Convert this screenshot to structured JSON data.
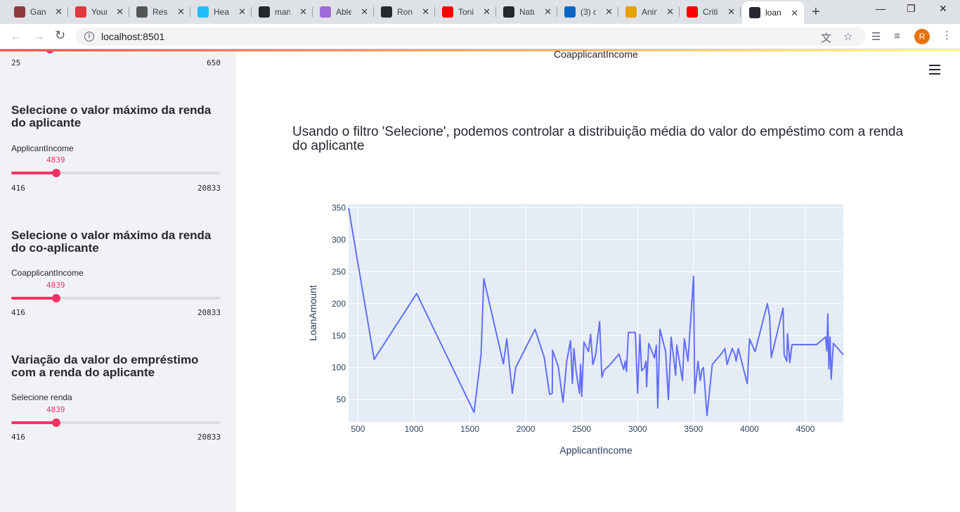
{
  "browser": {
    "tabs": [
      {
        "title": "Gant",
        "icon": "car-icon",
        "color": "#8d3b3b"
      },
      {
        "title": "Your",
        "icon": "crown-icon",
        "color": "#e0383e"
      },
      {
        "title": "Resi",
        "icon": "phone-icon",
        "color": "#555555"
      },
      {
        "title": "Hea",
        "icon": "kaggle-icon",
        "color": "#20beff"
      },
      {
        "title": "man",
        "icon": "github-icon",
        "color": "#24292e"
      },
      {
        "title": "Able",
        "icon": "able-icon",
        "color": "#9e6bd8"
      },
      {
        "title": "Ron",
        "icon": "github-icon",
        "color": "#24292e"
      },
      {
        "title": "Toni",
        "icon": "youtube-icon",
        "color": "#ff0000"
      },
      {
        "title": "Natu",
        "icon": "github-icon",
        "color": "#24292e"
      },
      {
        "title": "(3) c",
        "icon": "linkedin-icon",
        "color": "#0a66c2"
      },
      {
        "title": "Anin",
        "icon": "anime-icon",
        "color": "#e5a100"
      },
      {
        "title": "Criti",
        "icon": "youtube-icon",
        "color": "#ff0000"
      },
      {
        "title": "loan",
        "icon": "streamlit-icon",
        "color": "#262730"
      }
    ],
    "url": "localhost:8501",
    "avatar_letter": "R"
  },
  "sidebar": {
    "top_slider": {
      "min": "25",
      "max": "650",
      "fraction": 0.19
    },
    "sections": [
      {
        "heading": "Selecione o valor máximo da renda do aplicante",
        "label": "ApplicantIncome",
        "value": "4839",
        "min": "416",
        "max": "20833",
        "fraction": 0.215
      },
      {
        "heading": "Selecione o valor máximo da renda do co-aplicante",
        "label": "CoapplicantIncome",
        "value": "4839",
        "min": "416",
        "max": "20833",
        "fraction": 0.215
      },
      {
        "heading": "Variação da valor do empréstimo com a renda do aplicante",
        "label": "Selecione renda",
        "value": "4839",
        "min": "416",
        "max": "20833",
        "fraction": 0.215
      }
    ]
  },
  "main": {
    "top_axis_label": "CoapplicantIncome",
    "description": "Usando o filtro 'Selecione', podemos controlar a distribuição média do valor do empéstimo com a renda do aplicante"
  },
  "chart_data": {
    "type": "line",
    "xlabel": "ApplicantIncome",
    "ylabel": "LoanAmount",
    "xlim": [
      416,
      4839
    ],
    "ylim": [
      15,
      356
    ],
    "xticks": [
      500,
      1000,
      1500,
      2000,
      2500,
      3000,
      3500,
      4000,
      4500
    ],
    "yticks": [
      50,
      100,
      150,
      200,
      250,
      300,
      350
    ],
    "color": "#636efa",
    "background": "#e5ecf6",
    "grid": true,
    "x": [
      416,
      645,
      1025,
      1538,
      1600,
      1625,
      1800,
      1830,
      1880,
      1910,
      2083,
      2165,
      2213,
      2237,
      2240,
      2290,
      2333,
      2366,
      2400,
      2417,
      2430,
      2450,
      2480,
      2490,
      2500,
      2520,
      2560,
      2580,
      2600,
      2625,
      2660,
      2680,
      2700,
      2750,
      2833,
      2875,
      2890,
      2900,
      2917,
      2980,
      3000,
      3020,
      3036,
      3060,
      3075,
      3080,
      3100,
      3150,
      3167,
      3180,
      3200,
      3250,
      3275,
      3300,
      3340,
      3350,
      3400,
      3418,
      3450,
      3500,
      3510,
      3540,
      3560,
      3575,
      3588,
      3620,
      3667,
      3750,
      3780,
      3800,
      3846,
      3870,
      3880,
      3900,
      3980,
      4000,
      4050,
      4160,
      4180,
      4195,
      4300,
      4310,
      4333,
      4340,
      4360,
      4380,
      4600,
      4680,
      4692,
      4700,
      4710,
      4720,
      4730,
      4750,
      4839
    ],
    "y": [
      350,
      113,
      216,
      30,
      120,
      239,
      106,
      145,
      60,
      100,
      160,
      116,
      58,
      60,
      127,
      102,
      46,
      110,
      142,
      75,
      130,
      95,
      60,
      105,
      55,
      140,
      125,
      152,
      105,
      120,
      172,
      85,
      96,
      104,
      121,
      97,
      110,
      94,
      155,
      155,
      60,
      152,
      95,
      100,
      110,
      70,
      138,
      115,
      135,
      37,
      160,
      125,
      50,
      148,
      88,
      135,
      80,
      145,
      110,
      243,
      60,
      110,
      80,
      97,
      100,
      25,
      105,
      122,
      130,
      105,
      130,
      120,
      110,
      130,
      75,
      145,
      125,
      200,
      180,
      116,
      193,
      120,
      110,
      153,
      108,
      136,
      136,
      148,
      126,
      184,
      98,
      148,
      82,
      138,
      120
    ]
  }
}
